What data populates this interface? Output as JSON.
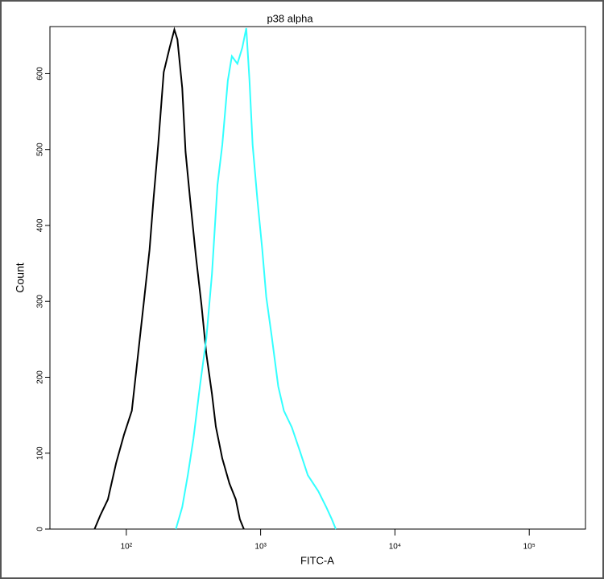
{
  "chart_data": {
    "type": "line",
    "title": "p38 alpha",
    "x_label": "FITC-A",
    "y_label": "Count",
    "xscale": "log",
    "xlim": [
      27,
      262144
    ],
    "ylim": [
      0,
      662
    ],
    "xticks": [
      {
        "value": 100,
        "label": "10²"
      },
      {
        "value": 1000,
        "label": "10³"
      },
      {
        "value": 10000,
        "label": "10⁴"
      },
      {
        "value": 100000,
        "label": "10⁵"
      }
    ],
    "yticks": [
      0,
      100,
      200,
      300,
      400,
      500,
      600
    ],
    "series": [
      {
        "color": "#000000",
        "x": [
          58,
          64,
          73,
          84,
          96,
          110,
          126,
          135,
          149,
          159,
          173,
          190,
          210,
          228,
          240,
          261,
          276,
          299,
          330,
          363,
          394,
          434,
          464,
          518,
          586,
          653,
          700,
          750
        ],
        "values": [
          0,
          18,
          39,
          87,
          124,
          156,
          251,
          299,
          368,
          432,
          507,
          602,
          634,
          658,
          645,
          581,
          497,
          433,
          359,
          295,
          231,
          178,
          135,
          93,
          60,
          39,
          13,
          0
        ]
      },
      {
        "color": "#33ffff",
        "x": [
          234,
          261,
          287,
          316,
          353,
          394,
          434,
          477,
          518,
          570,
          611,
          672,
          730,
          782,
          826,
          872,
          947,
          1028,
          1101,
          1211,
          1352,
          1489,
          1707,
          1958,
          2244,
          2685,
          3078,
          3388,
          3631
        ],
        "values": [
          0,
          29,
          71,
          119,
          188,
          251,
          336,
          453,
          506,
          591,
          623,
          613,
          634,
          660,
          591,
          506,
          433,
          369,
          306,
          253,
          188,
          156,
          134,
          103,
          71,
          50,
          29,
          13,
          0
        ]
      }
    ]
  }
}
